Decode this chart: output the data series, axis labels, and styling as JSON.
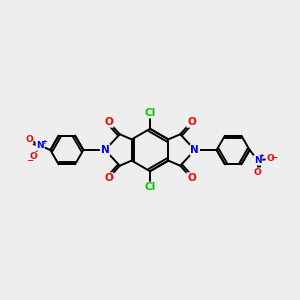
{
  "bg_color": "#eeeeee",
  "bond_color": "#000000",
  "bond_width": 1.4,
  "atom_colors": {
    "C": "#000000",
    "N": "#0000ff",
    "O": "#ff0000",
    "Cl": "#00cc00"
  },
  "figsize": [
    3.0,
    3.0
  ],
  "dpi": 100
}
